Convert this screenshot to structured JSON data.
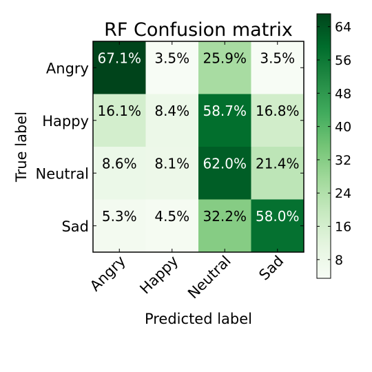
{
  "chart_data": {
    "type": "heatmap",
    "title": "RF Confusion matrix",
    "xlabel": "Predicted label",
    "ylabel": "True label",
    "x_categories": [
      "Angry",
      "Happy",
      "Neutral",
      "Sad"
    ],
    "y_categories": [
      "Angry",
      "Happy",
      "Neutral",
      "Sad"
    ],
    "values": [
      [
        67.1,
        3.5,
        25.9,
        3.5
      ],
      [
        16.1,
        8.4,
        58.7,
        16.8
      ],
      [
        8.6,
        8.1,
        62.0,
        21.4
      ],
      [
        5.3,
        4.5,
        32.2,
        58.0
      ]
    ],
    "cell_labels": [
      [
        "67.1%",
        "3.5%",
        "25.9%",
        "3.5%"
      ],
      [
        "16.1%",
        "8.4%",
        "58.7%",
        "16.8%"
      ],
      [
        "8.6%",
        "8.1%",
        "62.0%",
        "21.4%"
      ],
      [
        "5.3%",
        "4.5%",
        "32.2%",
        "58.0%"
      ]
    ],
    "colormap": "Greens",
    "colorbar": {
      "range": [
        3.5,
        67.1
      ],
      "ticks": [
        8,
        16,
        24,
        32,
        40,
        48,
        56,
        64
      ]
    },
    "text_color_dark": "#000000",
    "text_color_light": "#ffffff"
  }
}
